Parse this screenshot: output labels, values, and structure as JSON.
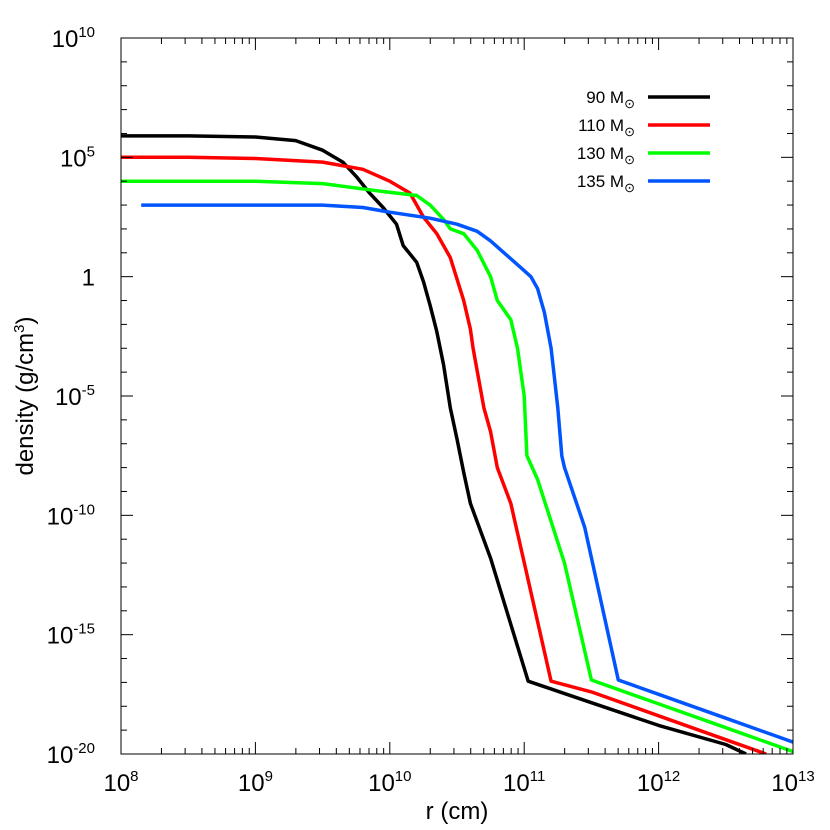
{
  "chart_data": {
    "type": "line",
    "xlabel": "r (cm)",
    "ylabel_main": "density (g/cm",
    "ylabel_sup": "3",
    "ylabel_tail": ")",
    "x_scale": "log",
    "y_scale": "log",
    "xlim": [
      100000000.0,
      10000000000000.0
    ],
    "ylim": [
      1e-20,
      10000000000.0
    ],
    "x_ticks": [
      {
        "exp": 8,
        "base": "10",
        "sup": "8"
      },
      {
        "exp": 9,
        "base": "10",
        "sup": "9"
      },
      {
        "exp": 10,
        "base": "10",
        "sup": "10"
      },
      {
        "exp": 11,
        "base": "10",
        "sup": "11"
      },
      {
        "exp": 12,
        "base": "10",
        "sup": "12"
      },
      {
        "exp": 13,
        "base": "10",
        "sup": "13"
      }
    ],
    "y_ticks": [
      {
        "exp": 10,
        "base": "10",
        "sup": "10"
      },
      {
        "exp": 5,
        "base": "10",
        "sup": "5"
      },
      {
        "exp": 0,
        "base": "1",
        "sup": ""
      },
      {
        "exp": -5,
        "base": "10",
        "sup": "-5"
      },
      {
        "exp": -10,
        "base": "10",
        "sup": "-10"
      },
      {
        "exp": -15,
        "base": "10",
        "sup": "-15"
      },
      {
        "exp": -20,
        "base": "10",
        "sup": "-20"
      }
    ],
    "grid": false,
    "legend_position": "top-right",
    "series": [
      {
        "name": "90 M",
        "symbol": "⊙",
        "color": "#000000",
        "points": [
          [
            8.0,
            5.9
          ],
          [
            8.5,
            5.9
          ],
          [
            9.0,
            5.85
          ],
          [
            9.3,
            5.7
          ],
          [
            9.5,
            5.3
          ],
          [
            9.65,
            4.8
          ],
          [
            9.75,
            4.2
          ],
          [
            9.85,
            3.5
          ],
          [
            9.95,
            2.9
          ],
          [
            10.05,
            2.2
          ],
          [
            10.1,
            1.3
          ],
          [
            10.2,
            0.6
          ],
          [
            10.25,
            -0.2
          ],
          [
            10.3,
            -1.2
          ],
          [
            10.35,
            -2.3
          ],
          [
            10.4,
            -3.7
          ],
          [
            10.45,
            -5.5
          ],
          [
            10.5,
            -6.8
          ],
          [
            10.55,
            -8.2
          ],
          [
            10.6,
            -9.5
          ],
          [
            10.75,
            -11.8
          ],
          [
            11.03,
            -16.95
          ],
          [
            11.5,
            -17.85
          ],
          [
            12.0,
            -18.8
          ],
          [
            12.5,
            -19.6
          ],
          [
            12.65,
            -20.0
          ]
        ]
      },
      {
        "name": "110 M",
        "symbol": "⊙",
        "color": "#ff0000",
        "points": [
          [
            8.0,
            5.0
          ],
          [
            8.5,
            5.0
          ],
          [
            9.0,
            4.95
          ],
          [
            9.5,
            4.8
          ],
          [
            9.8,
            4.5
          ],
          [
            10.0,
            4.0
          ],
          [
            10.15,
            3.5
          ],
          [
            10.25,
            2.5
          ],
          [
            10.35,
            1.8
          ],
          [
            10.45,
            0.8
          ],
          [
            10.55,
            -1.0
          ],
          [
            10.6,
            -2.2
          ],
          [
            10.62,
            -3.0
          ],
          [
            10.7,
            -5.5
          ],
          [
            10.75,
            -6.5
          ],
          [
            10.8,
            -8.0
          ],
          [
            10.9,
            -9.5
          ],
          [
            11.2,
            -16.95
          ],
          [
            11.5,
            -17.4
          ],
          [
            12.0,
            -18.4
          ],
          [
            12.5,
            -19.4
          ],
          [
            12.8,
            -20.0
          ]
        ]
      },
      {
        "name": "130 M",
        "symbol": "⊙",
        "color": "#00ff00",
        "points": [
          [
            8.0,
            4.0
          ],
          [
            8.5,
            4.0
          ],
          [
            9.0,
            4.0
          ],
          [
            9.5,
            3.9
          ],
          [
            9.9,
            3.6
          ],
          [
            10.2,
            3.4
          ],
          [
            10.3,
            3.0
          ],
          [
            10.4,
            2.4
          ],
          [
            10.45,
            2.0
          ],
          [
            10.55,
            1.8
          ],
          [
            10.65,
            1.1
          ],
          [
            10.75,
            0.0
          ],
          [
            10.8,
            -1.0
          ],
          [
            10.9,
            -1.8
          ],
          [
            10.95,
            -3.0
          ],
          [
            11.0,
            -5.0
          ],
          [
            11.02,
            -7.5
          ],
          [
            11.1,
            -8.5
          ],
          [
            11.3,
            -12.0
          ],
          [
            11.5,
            -16.9
          ],
          [
            12.0,
            -17.9
          ],
          [
            12.5,
            -18.9
          ],
          [
            13.0,
            -19.9
          ]
        ]
      },
      {
        "name": "135 M",
        "symbol": "⊙",
        "color": "#0055ff",
        "points": [
          [
            8.15,
            3.0
          ],
          [
            8.5,
            3.0
          ],
          [
            9.0,
            3.0
          ],
          [
            9.5,
            3.0
          ],
          [
            9.8,
            2.9
          ],
          [
            10.0,
            2.7
          ],
          [
            10.3,
            2.45
          ],
          [
            10.5,
            2.2
          ],
          [
            10.65,
            1.9
          ],
          [
            10.75,
            1.5
          ],
          [
            10.85,
            1.0
          ],
          [
            10.95,
            0.5
          ],
          [
            11.05,
            0.0
          ],
          [
            11.1,
            -0.5
          ],
          [
            11.15,
            -1.5
          ],
          [
            11.2,
            -3.0
          ],
          [
            11.22,
            -4.0
          ],
          [
            11.25,
            -5.5
          ],
          [
            11.28,
            -7.5
          ],
          [
            11.3,
            -8.0
          ],
          [
            11.45,
            -10.5
          ],
          [
            11.7,
            -16.9
          ],
          [
            12.0,
            -17.5
          ],
          [
            12.5,
            -18.5
          ],
          [
            13.0,
            -19.5
          ]
        ]
      }
    ]
  }
}
